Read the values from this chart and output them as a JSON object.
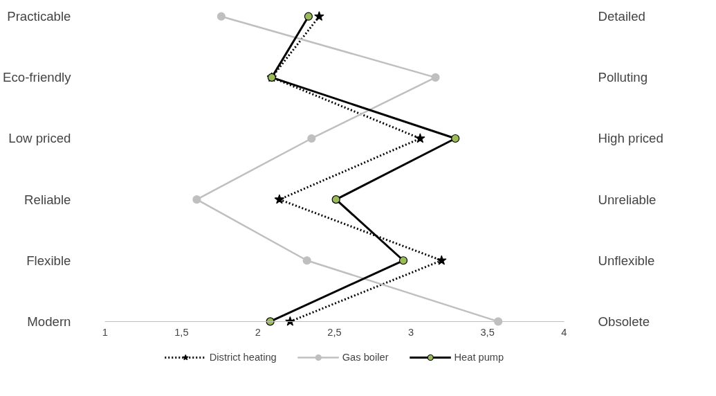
{
  "chart_data": {
    "type": "line",
    "orientation": "horizontal",
    "categories": [
      "Practicable",
      "Eco-friendly",
      "Low priced",
      "Reliable",
      "Flexible",
      "Modern"
    ],
    "y2_categories": [
      "Detailed",
      "Polluting",
      "High priced",
      "Unreliable",
      "Unflexible",
      "Obsolete"
    ],
    "xlim": [
      1,
      4
    ],
    "xticks": [
      1,
      {
        "value": 1.5,
        "label": "1,5"
      },
      2,
      {
        "value": 2.5,
        "label": "2,5"
      },
      3,
      {
        "value": 3.5,
        "label": "3,5"
      },
      4
    ],
    "series": [
      {
        "name": "District heating",
        "color": "#000000",
        "marker": "star",
        "line_style": "dotted",
        "values": [
          2.4,
          2.09,
          3.06,
          2.14,
          3.2,
          2.21
        ]
      },
      {
        "name": "Gas boiler",
        "color": "#bfbfbf",
        "marker": "circle",
        "line_style": "solid",
        "values": [
          1.76,
          3.16,
          2.35,
          1.6,
          2.32,
          3.57
        ]
      },
      {
        "name": "Heat pump",
        "color": "#000000",
        "colors": [
          "#9bbb59",
          "#9bbb59",
          "#9bbb59",
          "#9bbb59",
          "#9bbb59",
          "#9bbb59"
        ],
        "marker": "circle",
        "line_style": "solid",
        "values": [
          2.33,
          2.09,
          3.29,
          2.51,
          2.95,
          2.08
        ]
      }
    ],
    "grid": false,
    "legend": "bottom"
  }
}
